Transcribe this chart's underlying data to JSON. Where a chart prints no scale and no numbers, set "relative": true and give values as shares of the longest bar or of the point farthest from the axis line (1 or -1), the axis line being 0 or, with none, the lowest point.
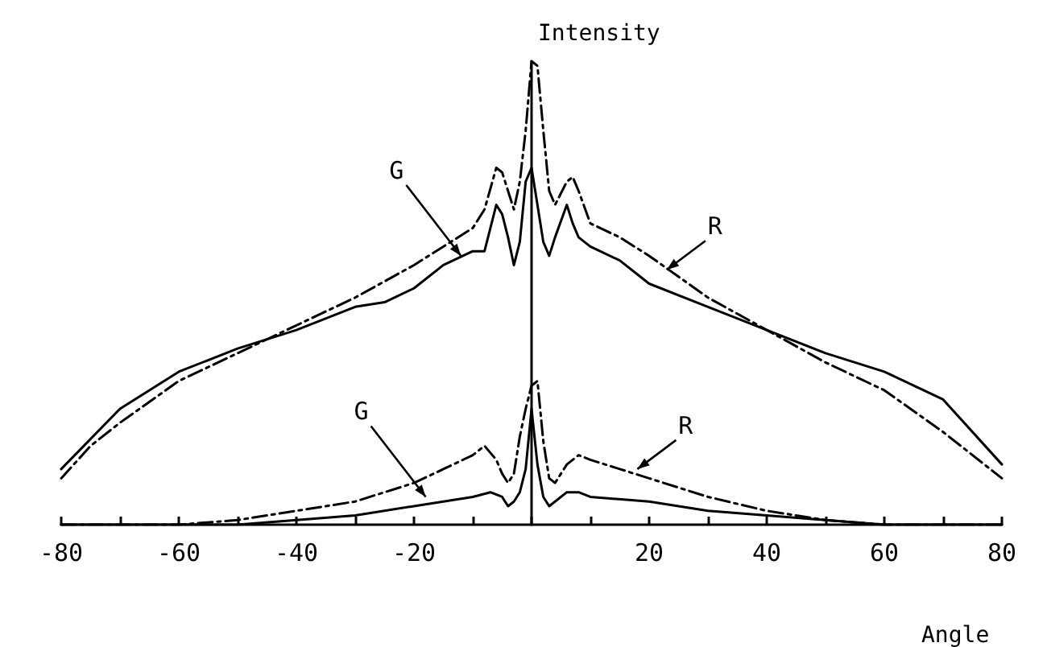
{
  "chart_data": {
    "type": "line",
    "relative": true,
    "xlabel": "Angle",
    "ylabel": "Intensity",
    "xlim": [
      -80,
      80
    ],
    "xticks": [
      -80,
      {
        "value": -70,
        "label": null
      },
      -60,
      {
        "value": -50,
        "label": null
      },
      -40,
      {
        "value": -30,
        "label": null
      },
      -20,
      {
        "value": -10,
        "label": null
      },
      {
        "value": 0,
        "label": null
      },
      {
        "value": 10,
        "label": null
      },
      20,
      {
        "value": 30,
        "label": null
      },
      40,
      {
        "value": 50,
        "label": null
      },
      60,
      {
        "value": 70,
        "label": null
      },
      80
    ],
    "marker": "none",
    "annotations": [
      {
        "text": "G",
        "x": -12,
        "y": 0.58
      },
      {
        "text": "R",
        "x": 23,
        "y": 0.55
      },
      {
        "text": "G",
        "x": -18,
        "y": 0.06
      },
      {
        "text": "R",
        "x": 18,
        "y": 0.12
      }
    ],
    "series": [
      {
        "color": "#000000",
        "line_style": "solid",
        "x": [
          -80,
          -70,
          -60,
          -50,
          -40,
          -30,
          -25,
          -20,
          -15,
          -10,
          -8,
          -6,
          -5,
          -4,
          -3,
          -2,
          -1,
          0,
          1,
          2,
          3,
          4,
          6,
          7,
          8,
          10,
          15,
          20,
          30,
          40,
          50,
          60,
          70,
          80
        ],
        "values": [
          0.12,
          0.25,
          0.33,
          0.38,
          0.42,
          0.47,
          0.48,
          0.51,
          0.56,
          0.59,
          0.59,
          0.69,
          0.67,
          0.62,
          0.56,
          0.61,
          0.74,
          0.77,
          0.69,
          0.61,
          0.58,
          0.62,
          0.69,
          0.65,
          0.62,
          0.6,
          0.57,
          0.52,
          0.47,
          0.42,
          0.37,
          0.33,
          0.27,
          0.13
        ]
      },
      {
        "color": "#000000",
        "line_style": "dashed",
        "x": [
          -80,
          -75,
          -70,
          -60,
          -50,
          -40,
          -30,
          -20,
          -15,
          -10,
          -8,
          -6,
          -5,
          -4,
          -3,
          -2,
          -1,
          0,
          1,
          2,
          3,
          4,
          6,
          7,
          8,
          10,
          15,
          20,
          30,
          40,
          50,
          60,
          70,
          80
        ],
        "values": [
          0.1,
          0.17,
          0.22,
          0.31,
          0.37,
          0.43,
          0.49,
          0.56,
          0.6,
          0.64,
          0.68,
          0.77,
          0.76,
          0.72,
          0.68,
          0.74,
          0.85,
          1,
          0.99,
          0.85,
          0.72,
          0.69,
          0.74,
          0.75,
          0.72,
          0.65,
          0.62,
          0.58,
          0.49,
          0.42,
          0.35,
          0.29,
          0.2,
          0.1
        ]
      },
      {
        "color": "#000000",
        "line_style": "solid",
        "x": [
          -80,
          -50,
          -40,
          -30,
          -20,
          -10,
          -7,
          -5,
          -4,
          -3,
          -2,
          -1,
          0,
          1,
          2,
          3,
          4,
          6,
          8,
          10,
          20,
          30,
          40,
          50,
          60,
          80
        ],
        "values": [
          0,
          0,
          0.01,
          0.02,
          0.04,
          0.06,
          0.07,
          0.06,
          0.04,
          0.05,
          0.07,
          0.12,
          0.25,
          0.13,
          0.06,
          0.04,
          0.05,
          0.07,
          0.07,
          0.06,
          0.05,
          0.03,
          0.02,
          0.01,
          0,
          0
        ]
      },
      {
        "color": "#000000",
        "line_style": "dashed",
        "x": [
          -80,
          -60,
          -50,
          -40,
          -30,
          -20,
          -15,
          -10,
          -8,
          -6,
          -5,
          -4,
          -3,
          -2,
          -1,
          0,
          1,
          2,
          3,
          4,
          6,
          8,
          10,
          15,
          20,
          30,
          40,
          50,
          60,
          80
        ],
        "values": [
          0,
          0,
          0.01,
          0.03,
          0.05,
          0.09,
          0.12,
          0.15,
          0.17,
          0.14,
          0.11,
          0.09,
          0.11,
          0.19,
          0.25,
          0.3,
          0.31,
          0.18,
          0.1,
          0.09,
          0.13,
          0.15,
          0.14,
          0.12,
          0.1,
          0.06,
          0.03,
          0.01,
          0,
          0
        ]
      }
    ]
  }
}
